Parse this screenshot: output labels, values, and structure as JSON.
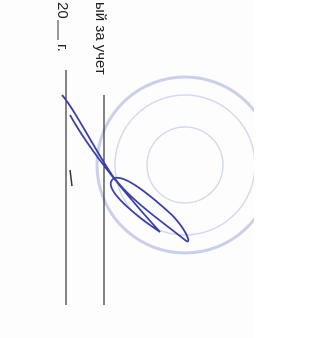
{
  "texts": {
    "responsible": "ый за учет",
    "year": "20",
    "year_suffix": "г."
  }
}
